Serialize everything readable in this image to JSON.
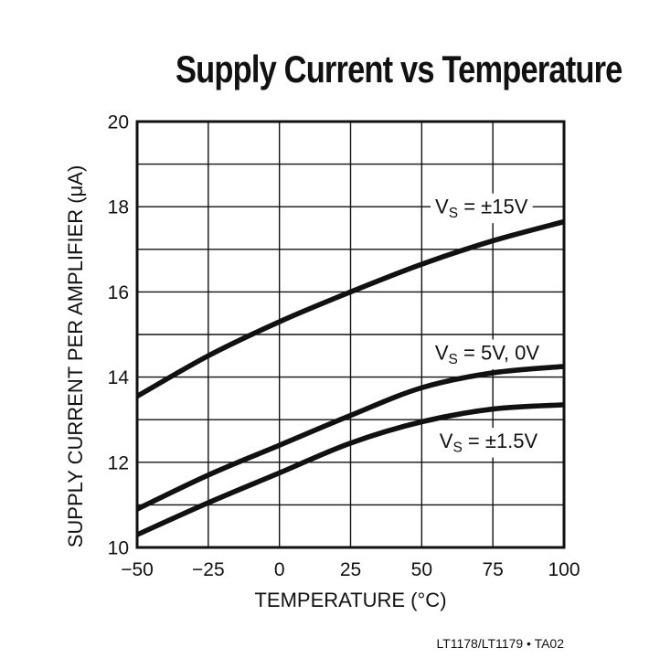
{
  "chart_data": {
    "type": "line",
    "title": "Supply Current vs Temperature",
    "xlabel": "TEMPERATURE (°C)",
    "ylabel": "SUPPLY CURRENT PER AMPLIFIER (μA)",
    "xlim": [
      -50,
      100
    ],
    "ylim": [
      10,
      20
    ],
    "grid": true,
    "x_grid_every": 25,
    "y_grid_every": 1,
    "x_ticks": [
      -50,
      -25,
      0,
      25,
      50,
      75,
      100
    ],
    "x_tick_labels": [
      "−50",
      "−25",
      "0",
      "25",
      "50",
      "75",
      "100"
    ],
    "y_ticks": [
      10,
      12,
      14,
      16,
      18,
      20
    ],
    "y_tick_labels": [
      "10",
      "12",
      "14",
      "16",
      "18",
      "20"
    ],
    "legend_position": "inline-labels",
    "ink_color": "#111111",
    "background_color": "#ffffff",
    "x": [
      -50,
      -25,
      0,
      25,
      50,
      75,
      100
    ],
    "series": [
      {
        "id": "vs-pm15v",
        "name": "VS = ±15V",
        "label_parts": {
          "base": "V",
          "sub": "S",
          "rest": " = ±15V"
        },
        "values": [
          13.55,
          14.5,
          15.3,
          16.0,
          16.65,
          17.2,
          17.65
        ],
        "label_pos": {
          "x": 71,
          "y": 18.0
        }
      },
      {
        "id": "vs-5v-0v",
        "name": "VS = 5V, 0V",
        "label_parts": {
          "base": "V",
          "sub": "S",
          "rest": " = 5V, 0V"
        },
        "values": [
          10.9,
          11.7,
          12.4,
          13.1,
          13.75,
          14.1,
          14.25
        ],
        "label_pos": {
          "x": 73,
          "y": 14.57
        }
      },
      {
        "id": "vs-pm1p5v",
        "name": "VS = ±1.5V",
        "label_parts": {
          "base": "V",
          "sub": "S",
          "rest": " = ±1.5V"
        },
        "values": [
          10.3,
          11.05,
          11.75,
          12.45,
          12.95,
          13.25,
          13.35
        ],
        "label_pos": {
          "x": 73.5,
          "y": 12.5
        }
      }
    ]
  },
  "footer": {
    "label": "LT1178/LT1179 • TA02"
  }
}
